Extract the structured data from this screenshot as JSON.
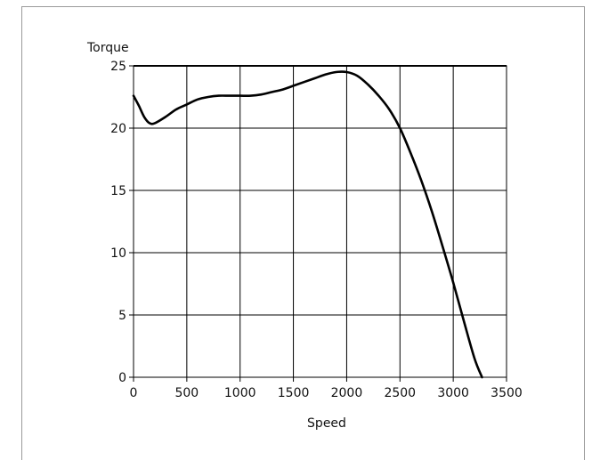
{
  "chart_data": {
    "type": "line",
    "title": "",
    "xlabel": "Speed",
    "ylabel": "Torque",
    "xlim": [
      0,
      3500
    ],
    "ylim": [
      0,
      25
    ],
    "x_ticks": [
      0,
      500,
      1000,
      1500,
      2000,
      2500,
      3000,
      3500
    ],
    "y_ticks": [
      0,
      5,
      10,
      15,
      20,
      25
    ],
    "grid": true,
    "legend": "none",
    "line_color": "#000000",
    "series": [
      {
        "x": [
          0,
          50,
          100,
          150,
          200,
          300,
          400,
          500,
          600,
          700,
          800,
          900,
          1000,
          1100,
          1200,
          1300,
          1400,
          1500,
          1600,
          1700,
          1800,
          1900,
          2000,
          2100,
          2200,
          2300,
          2400,
          2500,
          2600,
          2700,
          2800,
          2900,
          3000,
          3100,
          3200,
          3270
        ],
        "y": [
          22.6,
          21.8,
          20.9,
          20.4,
          20.4,
          20.9,
          21.5,
          21.9,
          22.3,
          22.5,
          22.6,
          22.6,
          22.6,
          22.6,
          22.7,
          22.9,
          23.1,
          23.4,
          23.7,
          24.0,
          24.3,
          24.5,
          24.5,
          24.2,
          23.5,
          22.6,
          21.5,
          20.0,
          18.0,
          15.8,
          13.3,
          10.5,
          7.6,
          4.5,
          1.5,
          0.0
        ]
      }
    ]
  }
}
